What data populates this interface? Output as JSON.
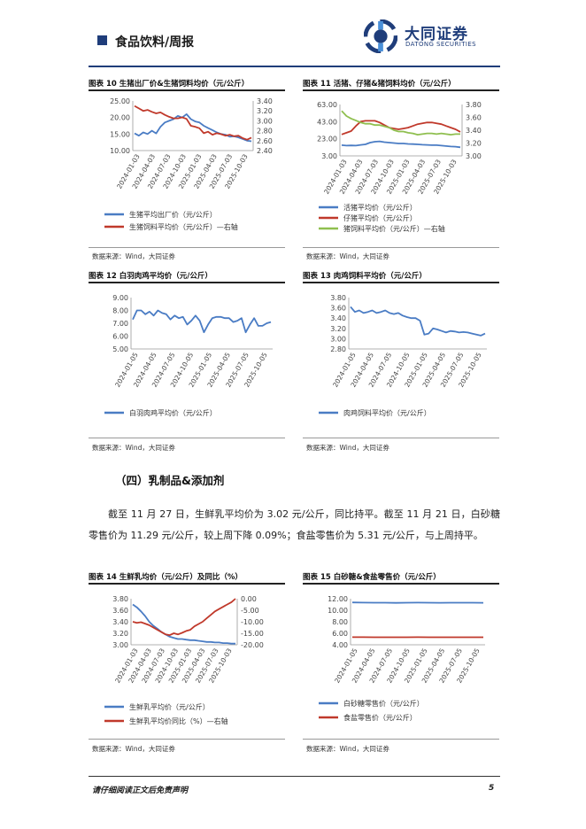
{
  "header": {
    "title": "食品饮料/周报",
    "logo_cn": "大同证券",
    "logo_en": "DATONG SECURITIES"
  },
  "colors": {
    "navy": "#1f3d7a",
    "blue": "#4a7cc4",
    "red": "#c0392b",
    "green": "#8fbf4f"
  },
  "figures": {
    "f10": {
      "title": "图表 10  生猪出厂价&生猪饲料均价（元/公斤）",
      "source": "数据来源：Wind，大同证券"
    },
    "f11": {
      "title": "图表 11  活猪、仔猪&猪饲料均价（元/公斤）",
      "source": "数据来源：Wind，大同证券"
    },
    "f12": {
      "title": "图表 12  白羽肉鸡平均价（元/公斤）",
      "source": "数据来源：Wind，大同证券"
    },
    "f13": {
      "title": "图表 13  肉鸡饲料平均价（元/公斤）",
      "source": "数据来源：Wind，大同证券"
    },
    "f14": {
      "title": "图表 14  生鲜乳均价（元/公斤）及同比（%）",
      "source": "数据来源：Wind，大同证券"
    },
    "f15": {
      "title": "图表 15  白砂糖&食盐零售价（元/公斤）",
      "source": "数据来源：Wind，大同证券"
    }
  },
  "section": {
    "heading": "（四）乳制品&添加剂",
    "paragraph": "截至 11 月 27 日，生鲜乳平均价为 3.02 元/公斤，同比持平。截至 11 月 21 日，白砂糖零售价为 11.29 元/公斤，较上周下降 0.09%；食盐零售价为 5.31 元/公斤，与上周持平。"
  },
  "footer": {
    "disclaimer": "请仔细阅读正文后免责声明",
    "page": "5"
  },
  "chart_data": [
    {
      "id": "f10",
      "type": "line",
      "x_ticks": [
        "2024-01-03",
        "2024-04-03",
        "2024-07-03",
        "2024-10-03",
        "2025-01-03",
        "2025-04-03",
        "2025-07-03",
        "2025-10-03"
      ],
      "left_axis": {
        "ticks": [
          "10.00",
          "15.00",
          "20.00",
          "25.00"
        ],
        "ylim": [
          10,
          25
        ]
      },
      "right_axis": {
        "ticks": [
          "2.40",
          "2.60",
          "2.80",
          "3.00",
          "3.20",
          "3.40"
        ],
        "ylim": [
          2.4,
          3.4
        ]
      },
      "series": [
        {
          "name": "生猪平均出厂价（元/公斤）",
          "color": "#4a7cc4",
          "axis": "left",
          "values": [
            15.2,
            14.5,
            15.5,
            15.0,
            16.0,
            15.2,
            17.2,
            18.5,
            19.0,
            19.5,
            20.5,
            20.0,
            21.0,
            19.5,
            18.8,
            18.5,
            17.5,
            16.8,
            16.2,
            15.5,
            15.0,
            14.8,
            14.2,
            14.3,
            14.0,
            13.5,
            13.0,
            12.8
          ]
        },
        {
          "name": "生猪饲料平均价（元/公斤）—右轴",
          "color": "#c0392b",
          "axis": "right",
          "values": [
            3.3,
            3.25,
            3.2,
            3.22,
            3.18,
            3.15,
            3.17,
            3.12,
            3.08,
            3.05,
            3.05,
            3.07,
            3.04,
            2.9,
            2.88,
            2.85,
            2.75,
            2.78,
            2.72,
            2.75,
            2.73,
            2.7,
            2.72,
            2.69,
            2.7,
            2.65,
            2.62,
            2.66
          ]
        }
      ]
    },
    {
      "id": "f11",
      "type": "line",
      "x_ticks": [
        "2024-01-03",
        "2024-04-03",
        "2024-07-03",
        "2024-10-03",
        "2025-01-03",
        "2025-04-03",
        "2025-07-03",
        "2025-10-03"
      ],
      "left_axis": {
        "ticks": [
          "3.00",
          "23.00",
          "43.00",
          "63.00"
        ],
        "ylim": [
          3,
          63
        ]
      },
      "right_axis": {
        "ticks": [
          "3.00",
          "3.20",
          "3.40",
          "3.60",
          "3.80"
        ],
        "ylim": [
          3.0,
          3.8
        ]
      },
      "series": [
        {
          "name": "活猪平均价（元/公斤）",
          "color": "#4a7cc4",
          "axis": "left",
          "values": [
            15.5,
            15.0,
            15.2,
            15.0,
            15.8,
            16.5,
            18.5,
            19.5,
            20.0,
            19.0,
            18.5,
            18.0,
            17.5,
            17.5,
            17.0,
            16.8,
            16.5,
            16.0,
            15.8,
            15.5,
            15.5,
            15.0,
            14.5,
            14.0,
            13.8,
            13.0
          ]
        },
        {
          "name": "仔猪平均价（元/公斤）",
          "color": "#c0392b",
          "axis": "left",
          "values": [
            28,
            30,
            32,
            38,
            43,
            44,
            44,
            44,
            42,
            39,
            36,
            35,
            34,
            35,
            36,
            38,
            40,
            41,
            42,
            42,
            41,
            40,
            38,
            36,
            34,
            31
          ]
        },
        {
          "name": "猪饲料平均价（元/公斤）—右轴",
          "color": "#8fbf4f",
          "axis": "right",
          "values": [
            3.7,
            3.62,
            3.58,
            3.55,
            3.52,
            3.5,
            3.5,
            3.48,
            3.48,
            3.46,
            3.44,
            3.4,
            3.38,
            3.38,
            3.36,
            3.35,
            3.33,
            3.34,
            3.35,
            3.35,
            3.34,
            3.35,
            3.34,
            3.33,
            3.34,
            3.34
          ]
        }
      ]
    },
    {
      "id": "f12",
      "type": "line",
      "x_ticks": [
        "2024-01-05",
        "2024-04-05",
        "2024-07-05",
        "2024-10-05",
        "2025-01-05",
        "2025-04-05",
        "2025-07-05",
        "2025-10-05"
      ],
      "left_axis": {
        "ticks": [
          "5.00",
          "6.00",
          "7.00",
          "8.00",
          "9.00"
        ],
        "ylim": [
          5,
          9
        ]
      },
      "series": [
        {
          "name": "白羽肉鸡平均价（元/公斤）",
          "color": "#4a7cc4",
          "axis": "left",
          "values": [
            7.3,
            8.0,
            8.0,
            7.7,
            7.9,
            7.6,
            8.0,
            7.8,
            7.7,
            7.3,
            7.6,
            7.4,
            7.5,
            6.9,
            7.2,
            7.6,
            7.2,
            6.3,
            6.9,
            7.4,
            7.5,
            7.5,
            7.4,
            7.4,
            7.1,
            7.2,
            7.4,
            6.3,
            6.9,
            7.4,
            6.8,
            6.8,
            7.0,
            7.1
          ]
        }
      ]
    },
    {
      "id": "f13",
      "type": "line",
      "x_ticks": [
        "2024-01-05",
        "2024-04-05",
        "2024-07-05",
        "2024-10-05",
        "2025-01-05",
        "2025-04-05",
        "2025-07-05",
        "2025-10-05"
      ],
      "left_axis": {
        "ticks": [
          "2.80",
          "3.00",
          "3.20",
          "3.40",
          "3.60",
          "3.80"
        ],
        "ylim": [
          2.8,
          3.8
        ]
      },
      "series": [
        {
          "name": "肉鸡饲料平均价（元/公斤）",
          "color": "#4a7cc4",
          "axis": "left",
          "values": [
            3.62,
            3.52,
            3.55,
            3.5,
            3.52,
            3.55,
            3.5,
            3.52,
            3.55,
            3.5,
            3.48,
            3.5,
            3.45,
            3.42,
            3.4,
            3.4,
            3.35,
            3.08,
            3.1,
            3.2,
            3.18,
            3.15,
            3.12,
            3.15,
            3.14,
            3.12,
            3.13,
            3.12,
            3.1,
            3.08,
            3.06,
            3.1
          ]
        }
      ]
    },
    {
      "id": "f14",
      "type": "line",
      "x_ticks": [
        "2024-01-03",
        "2024-04-03",
        "2024-07-03",
        "2024-10-03",
        "2025-01-03",
        "2025-04-03",
        "2025-07-03",
        "2025-10-03"
      ],
      "left_axis": {
        "ticks": [
          "3.00",
          "3.20",
          "3.40",
          "3.60",
          "3.80"
        ],
        "ylim": [
          3.0,
          3.8
        ]
      },
      "right_axis": {
        "ticks": [
          "-20.00",
          "-15.00",
          "-10.00",
          "-5.00",
          "0.00"
        ],
        "ylim": [
          -20,
          0
        ]
      },
      "series": [
        {
          "name": "生鲜乳平均价（元/公斤）",
          "color": "#4a7cc4",
          "axis": "left",
          "values": [
            3.7,
            3.65,
            3.58,
            3.5,
            3.4,
            3.33,
            3.28,
            3.22,
            3.18,
            3.14,
            3.12,
            3.1,
            3.1,
            3.09,
            3.08,
            3.08,
            3.07,
            3.06,
            3.05,
            3.05,
            3.04,
            3.04,
            3.03,
            3.03,
            3.02,
            3.02
          ]
        },
        {
          "name": "生鲜乳平均价同比（%）—右轴",
          "color": "#c0392b",
          "axis": "right",
          "values": [
            -10.0,
            -10.5,
            -10.2,
            -10.8,
            -11.5,
            -12.5,
            -13.5,
            -14.5,
            -15.5,
            -15.8,
            -15.0,
            -15.5,
            -14.8,
            -14.0,
            -13.5,
            -12.0,
            -11.0,
            -10.0,
            -8.5,
            -7.0,
            -5.5,
            -4.5,
            -3.5,
            -2.5,
            -1.5,
            0.0
          ]
        }
      ]
    },
    {
      "id": "f15",
      "type": "line",
      "x_ticks": [
        "2024-01-05",
        "2024-04-05",
        "2024-07-05",
        "2024-10-05",
        "2025-01-05",
        "2025-04-05",
        "2025-07-05",
        "2025-10-05"
      ],
      "left_axis": {
        "ticks": [
          "4.00",
          "6.00",
          "8.00",
          "10.00",
          "12.00"
        ],
        "ylim": [
          4,
          12
        ]
      },
      "series": [
        {
          "name": "白砂糖零售价（元/公斤）",
          "color": "#4a7cc4",
          "axis": "left",
          "values": [
            11.35,
            11.33,
            11.3,
            11.3,
            11.28,
            11.3,
            11.32,
            11.3,
            11.29,
            11.3,
            11.31,
            11.3,
            11.29
          ]
        },
        {
          "name": "食盐零售价（元/公斤）",
          "color": "#c0392b",
          "axis": "left",
          "values": [
            5.32,
            5.32,
            5.31,
            5.31,
            5.31,
            5.31,
            5.32,
            5.31,
            5.31,
            5.31,
            5.31,
            5.31,
            5.31
          ]
        }
      ]
    }
  ]
}
